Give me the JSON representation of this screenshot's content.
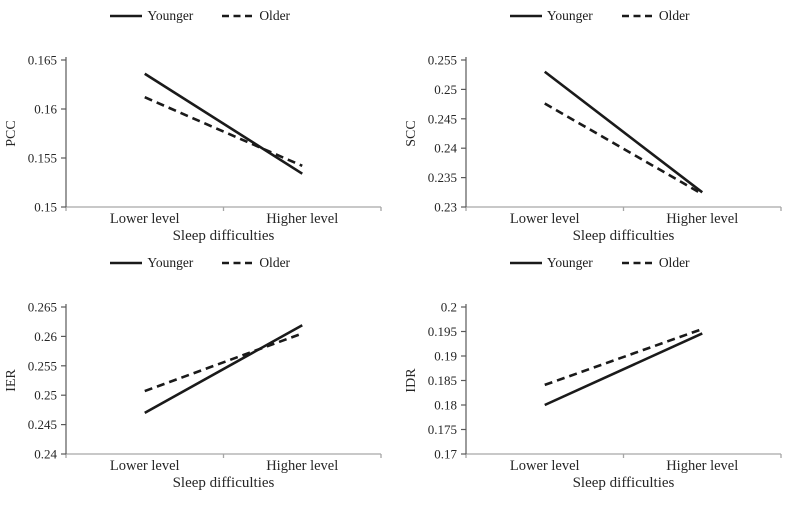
{
  "figure": {
    "background": "#ffffff",
    "legend": {
      "younger_label": "Younger",
      "older_label": "Older",
      "position": "top"
    }
  },
  "colors": {
    "line": "#1a1a1a",
    "text": "#262626",
    "y_axis": "#595959",
    "x_axis": "#a6a6a6"
  },
  "chart_data": [
    {
      "type": "line",
      "title": "",
      "ylabel": "PCC",
      "xlabel": "Sleep difficulties",
      "categories": [
        "Lower level",
        "Higher level"
      ],
      "ylim": [
        0.15,
        0.165
      ],
      "yticks": [
        "0.15",
        "0.155",
        "0.16",
        "0.165"
      ],
      "grid": false,
      "legend_position": "top",
      "series": [
        {
          "name": "Younger",
          "style": "solid",
          "values": [
            0.1636,
            0.1534
          ]
        },
        {
          "name": "Older",
          "style": "dashed",
          "values": [
            0.1612,
            0.1542
          ]
        }
      ]
    },
    {
      "type": "line",
      "title": "",
      "ylabel": "SCC",
      "xlabel": "Sleep difficulties",
      "categories": [
        "Lower level",
        "Higher level"
      ],
      "ylim": [
        0.23,
        0.255
      ],
      "yticks": [
        "0.23",
        "0.235",
        "0.24",
        "0.245",
        "0.25",
        "0.255"
      ],
      "grid": false,
      "legend_position": "top",
      "series": [
        {
          "name": "Younger",
          "style": "solid",
          "values": [
            0.253,
            0.2325
          ]
        },
        {
          "name": "Older",
          "style": "dashed",
          "values": [
            0.2476,
            0.2322
          ]
        }
      ]
    },
    {
      "type": "line",
      "title": "",
      "ylabel": "IER",
      "xlabel": "Sleep difficulties",
      "categories": [
        "Lower level",
        "Higher level"
      ],
      "ylim": [
        0.24,
        0.265
      ],
      "yticks": [
        "0.24",
        "0.245",
        "0.25",
        "0.255",
        "0.26",
        "0.265"
      ],
      "grid": false,
      "legend_position": "top",
      "series": [
        {
          "name": "Younger",
          "style": "solid",
          "values": [
            0.247,
            0.2619
          ]
        },
        {
          "name": "Older",
          "style": "dashed",
          "values": [
            0.2507,
            0.2605
          ]
        }
      ]
    },
    {
      "type": "line",
      "title": "",
      "ylabel": "IDR",
      "xlabel": "Sleep difficulties",
      "categories": [
        "Lower level",
        "Higher level"
      ],
      "ylim": [
        0.17,
        0.2
      ],
      "yticks": [
        "0.17",
        "0.175",
        "0.18",
        "0.185",
        "0.19",
        "0.195",
        "0.2"
      ],
      "grid": false,
      "legend_position": "top",
      "series": [
        {
          "name": "Younger",
          "style": "solid",
          "values": [
            0.18,
            0.1946
          ]
        },
        {
          "name": "Older",
          "style": "dashed",
          "values": [
            0.1841,
            0.1955
          ]
        }
      ]
    }
  ]
}
